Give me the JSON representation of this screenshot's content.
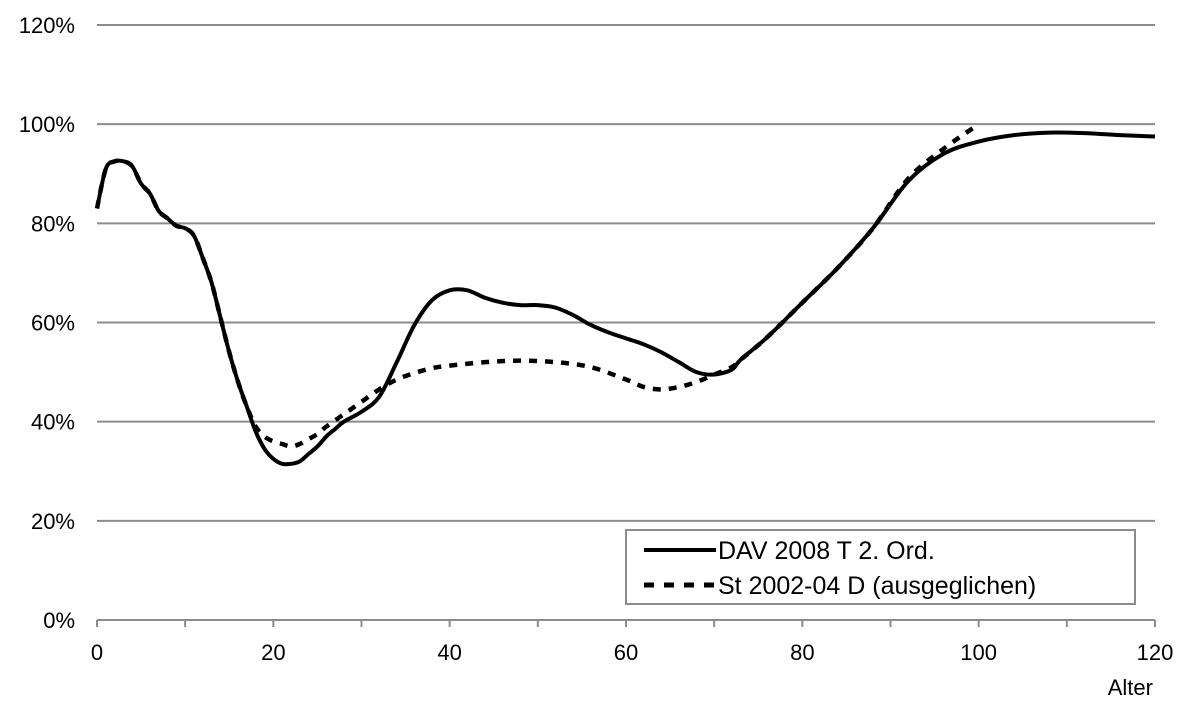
{
  "chart_data": {
    "type": "line",
    "xlabel": "Alter",
    "ylabel": "",
    "xlim": [
      0,
      120
    ],
    "ylim": [
      0,
      120
    ],
    "x_ticks": [
      0,
      20,
      40,
      60,
      80,
      100,
      120
    ],
    "y_ticks": [
      0,
      20,
      40,
      60,
      80,
      100,
      120
    ],
    "x_tick_labels": [
      "0",
      "20",
      "40",
      "60",
      "80",
      "100",
      "120"
    ],
    "y_tick_labels": [
      "0%",
      "20%",
      "40%",
      "60%",
      "80%",
      "100%",
      "120%"
    ],
    "grid": "horizontal",
    "legend_position": "bottom-right",
    "series": [
      {
        "name": "DAV 2008 T 2. Ord.",
        "style": "solid",
        "color": "#000000",
        "x": [
          0,
          1,
          2,
          3,
          4,
          5,
          6,
          7,
          8,
          9,
          10,
          11,
          12,
          13,
          14,
          15,
          16,
          17,
          18,
          19,
          20,
          21,
          22,
          23,
          24,
          25,
          26,
          27,
          28,
          30,
          32,
          34,
          36,
          38,
          40,
          42,
          44,
          46,
          48,
          50,
          52,
          54,
          56,
          58,
          60,
          62,
          64,
          66,
          68,
          70,
          72,
          73,
          76,
          80,
          84,
          88,
          92,
          96,
          100,
          104,
          108,
          112,
          116,
          120
        ],
        "values": [
          83,
          91,
          92.5,
          92.5,
          91.5,
          88,
          86,
          82.5,
          81,
          79.5,
          79,
          77.5,
          73,
          68,
          61,
          54,
          48,
          43,
          38,
          34.5,
          32.5,
          31.5,
          31.5,
          32,
          33.5,
          35,
          37,
          38.5,
          40,
          42,
          45,
          52,
          59.5,
          64.5,
          66.5,
          66.5,
          65,
          64,
          63.5,
          63.5,
          63,
          61.5,
          59.5,
          58,
          56.8,
          55.6,
          54,
          52,
          50,
          49.5,
          50.5,
          52.5,
          57,
          64,
          71,
          79,
          88.5,
          94,
          96.5,
          97.8,
          98.3,
          98.2,
          97.8,
          97.5
        ]
      },
      {
        "name": "St 2002-04 D (ausgeglichen)",
        "style": "dashed",
        "color": "#000000",
        "x": [
          0,
          1,
          2,
          3,
          4,
          5,
          6,
          7,
          8,
          9,
          10,
          11,
          12,
          13,
          14,
          15,
          16,
          17,
          18,
          19,
          20,
          21,
          22,
          23,
          24,
          25,
          26,
          28,
          30,
          32,
          34,
          36,
          38,
          40,
          44,
          48,
          52,
          56,
          60,
          62,
          64,
          66,
          68,
          70,
          72,
          73,
          76,
          80,
          84,
          88,
          92,
          96,
          100
        ],
        "values": [
          83,
          91,
          92.5,
          92.5,
          91.5,
          88,
          86,
          82.5,
          81,
          79.5,
          79,
          77.5,
          73,
          68,
          61,
          54,
          48,
          43,
          39,
          37,
          36,
          35.5,
          35,
          35.5,
          36.5,
          37.5,
          39,
          41.5,
          44,
          46.5,
          48.5,
          49.8,
          50.8,
          51.3,
          52,
          52.3,
          52,
          51,
          48.5,
          47,
          46.5,
          47,
          48,
          49.5,
          51,
          52.5,
          57,
          64,
          71,
          79,
          89,
          95,
          100
        ]
      }
    ]
  }
}
